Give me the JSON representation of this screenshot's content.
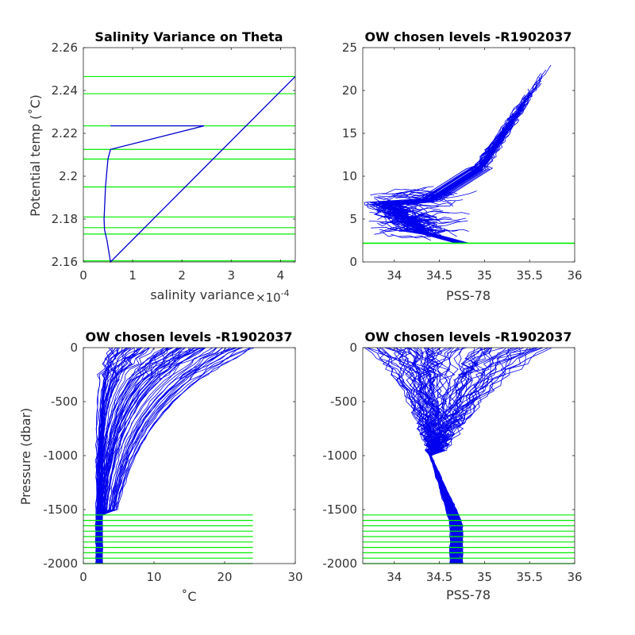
{
  "chart_data": [
    {
      "type": "line",
      "title": "Salinity Variance on Theta",
      "xlabel": "salinity variance",
      "x_exponent_label": "×10",
      "x_exponent_power": "-4",
      "ylabel": "Potential temp (˚C)",
      "xlim": [
        0,
        4.3
      ],
      "ylim": [
        2.16,
        2.26
      ],
      "xticks": [
        "0",
        "1",
        "2",
        "3",
        "4"
      ],
      "yticks": [
        "2.16",
        "2.18",
        "2.2",
        "2.22",
        "2.24",
        "2.26"
      ],
      "series": [
        {
          "color": "#0000cc",
          "points": [
            [
              0.55,
              2.2235
            ],
            [
              2.45,
              2.2235
            ],
            [
              0.55,
              2.2125
            ],
            [
              0.5,
              2.208
            ],
            [
              0.45,
              2.195
            ],
            [
              0.42,
              2.18
            ],
            [
              0.43,
              2.175
            ],
            [
              0.48,
              2.17
            ],
            [
              0.55,
              2.16
            ],
            [
              4.3,
              2.2465
            ]
          ]
        }
      ],
      "hlines": {
        "color": "#00ee00",
        "y": [
          2.2465,
          2.2385,
          2.2235,
          2.2125,
          2.208,
          2.195,
          2.181,
          2.176,
          2.173,
          2.1605
        ]
      }
    },
    {
      "type": "line",
      "title": "OW chosen levels -R1902037",
      "xlabel": "PSS-78",
      "ylabel": "",
      "xlim": [
        33.65,
        36
      ],
      "ylim": [
        0,
        25
      ],
      "xticks": [
        "34",
        "34.5",
        "35",
        "35.5",
        "36"
      ],
      "yticks": [
        "0",
        "5",
        "10",
        "15",
        "20",
        "25"
      ],
      "series": [
        {
          "color": "#0000ee",
          "description_points": [
            [
              33.7,
              7.5
            ],
            [
              33.8,
              5.5
            ],
            [
              33.95,
              3.5
            ],
            [
              34.2,
              2.6
            ],
            [
              34.5,
              2.8
            ],
            [
              34.7,
              3.8
            ],
            [
              34.6,
              5.5
            ],
            [
              34.7,
              8
            ],
            [
              35.05,
              11.5
            ],
            [
              35.3,
              14
            ],
            [
              35.55,
              17
            ],
            [
              35.7,
              20
            ]
          ]
        }
      ],
      "hlines": {
        "color": "#00ee00",
        "y": [
          2.16,
          2.2
        ]
      }
    },
    {
      "type": "line",
      "title": "OW chosen levels -R1902037",
      "xlabel": "˚C",
      "ylabel": "Pressure (dbar)",
      "xlim": [
        0,
        30
      ],
      "ylim": [
        -2000,
        0
      ],
      "xticks": [
        "0",
        "10",
        "20",
        "30"
      ],
      "yticks": [
        "-2000",
        "-1500",
        "-1000",
        "-500",
        "0"
      ],
      "series": [
        {
          "color": "#0000ee",
          "temperature_profile": [
            [
              22,
              0
            ],
            [
              14,
              -100
            ],
            [
              12,
              -300
            ],
            [
              10,
              -500
            ],
            [
              6,
              -800
            ],
            [
              4,
              -1000
            ],
            [
              3,
              -1200
            ],
            [
              2.5,
              -1500
            ],
            [
              2.2,
              -2000
            ]
          ]
        }
      ],
      "hlines": {
        "color": "#00ee00",
        "xrange": [
          0,
          24
        ],
        "y": [
          -1550,
          -1600,
          -1650,
          -1700,
          -1750,
          -1800,
          -1850,
          -1900,
          -1950,
          -2000
        ]
      }
    },
    {
      "type": "line",
      "title": "OW chosen levels -R1902037",
      "xlabel": "PSS-78",
      "ylabel": "",
      "xlim": [
        33.65,
        36
      ],
      "ylim": [
        -2000,
        0
      ],
      "xticks": [
        "34",
        "34.5",
        "35",
        "35.5",
        "36"
      ],
      "yticks": [
        "-2000",
        "-1500",
        "-1000",
        "-500",
        "0"
      ],
      "series": [
        {
          "color": "#0000ee",
          "salinity_profile": [
            [
              35.6,
              0
            ],
            [
              35.3,
              -150
            ],
            [
              35.0,
              -400
            ],
            [
              34.7,
              -700
            ],
            [
              34.35,
              -1000
            ],
            [
              34.5,
              -1300
            ],
            [
              34.65,
              -1600
            ],
            [
              34.7,
              -2000
            ]
          ]
        }
      ],
      "hlines": {
        "color": "#00ee00",
        "y": [
          -1550,
          -1600,
          -1650,
          -1700,
          -1750,
          -1800,
          -1850,
          -1900,
          -1950,
          -2000
        ]
      }
    }
  ]
}
